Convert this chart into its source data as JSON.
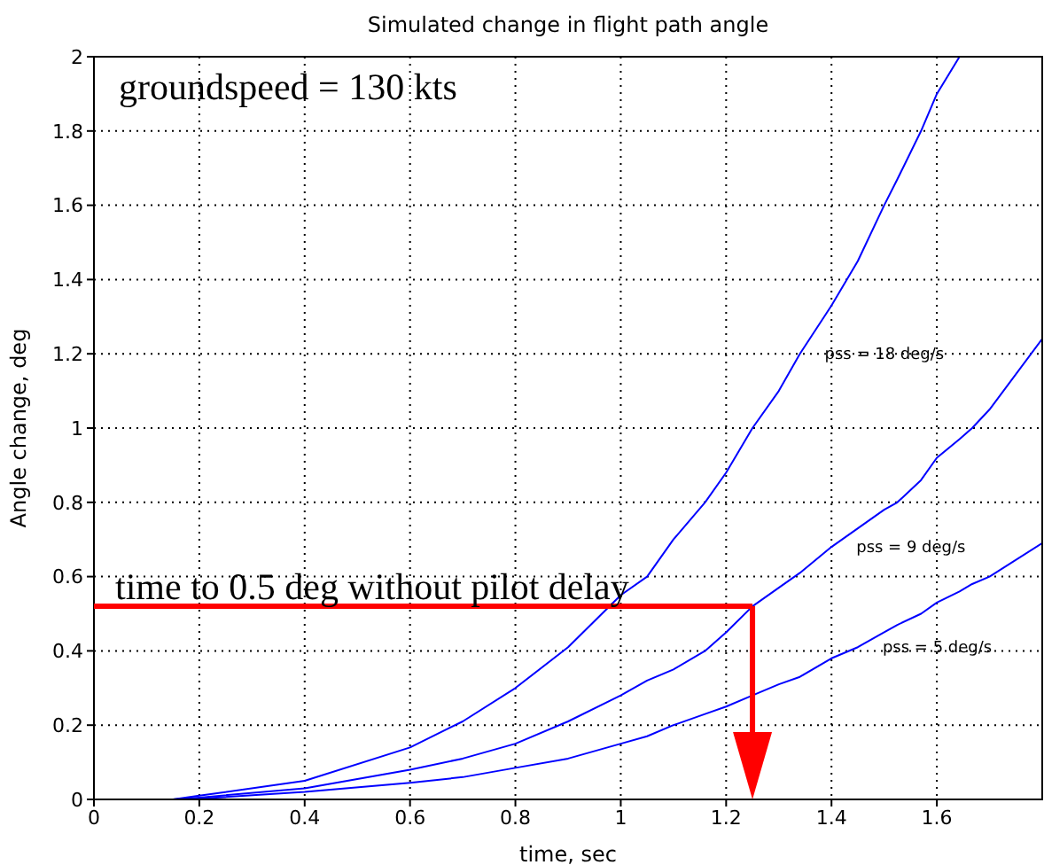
{
  "chart_data": {
    "type": "line",
    "title": "Simulated change in flight path angle",
    "xlabel": "time, sec",
    "ylabel": "Angle change, deg",
    "x": [
      0,
      0.15,
      0.2,
      0.4,
      0.6,
      0.7,
      0.8,
      0.9,
      1.0,
      1.05,
      1.1,
      1.16,
      1.2,
      1.25,
      1.3,
      1.34,
      1.4,
      1.45,
      1.5,
      1.525,
      1.57,
      1.6,
      1.643,
      1.667,
      1.7,
      1.8
    ],
    "series": [
      {
        "name": "pss = 18 deg/s",
        "color": "#0000ff",
        "values": [
          0,
          0,
          0.01,
          0.05,
          0.14,
          0.21,
          0.3,
          0.41,
          0.55,
          0.6,
          0.7,
          0.8,
          0.88,
          1.0,
          1.1,
          1.2,
          1.33,
          1.45,
          1.6,
          1.67,
          1.8,
          1.9,
          2.0,
          null,
          null,
          null
        ]
      },
      {
        "name": "pss = 9 deg/s",
        "color": "#0000ff",
        "values": [
          0,
          0,
          0.005,
          0.03,
          0.08,
          0.11,
          0.15,
          0.21,
          0.28,
          0.32,
          0.35,
          0.4,
          0.45,
          0.52,
          0.57,
          0.61,
          0.68,
          0.73,
          0.78,
          0.8,
          0.86,
          0.92,
          0.97,
          1.0,
          1.05,
          1.24
        ]
      },
      {
        "name": "pss = 5 deg/s",
        "color": "#0000ff",
        "values": [
          0,
          0,
          0.002,
          0.02,
          0.045,
          0.06,
          0.085,
          0.11,
          0.15,
          0.17,
          0.2,
          0.23,
          0.25,
          0.28,
          0.31,
          0.33,
          0.38,
          0.41,
          0.45,
          0.47,
          0.5,
          0.53,
          0.56,
          0.58,
          0.6,
          0.69
        ]
      }
    ],
    "xlim": [
      0,
      1.8
    ],
    "xticks": [
      0,
      0.2,
      0.4,
      0.6,
      0.8,
      1,
      1.2,
      1.4,
      1.6
    ],
    "ylim": [
      0,
      2
    ],
    "yticks": [
      0,
      0.2,
      0.4,
      0.6,
      0.8,
      1,
      1.2,
      1.4,
      1.6,
      1.8,
      2
    ],
    "grid": true,
    "marker": "none",
    "line_style": "solid",
    "ref_lines": [
      {
        "axis": "y",
        "value": 0.52,
        "color": "#ff0000"
      },
      {
        "axis": "x",
        "value": 1.25,
        "color": "#ff0000"
      }
    ],
    "annotations": [
      "groundspeed = 130 kts",
      "time to 0.5 deg without pilot delay"
    ]
  }
}
